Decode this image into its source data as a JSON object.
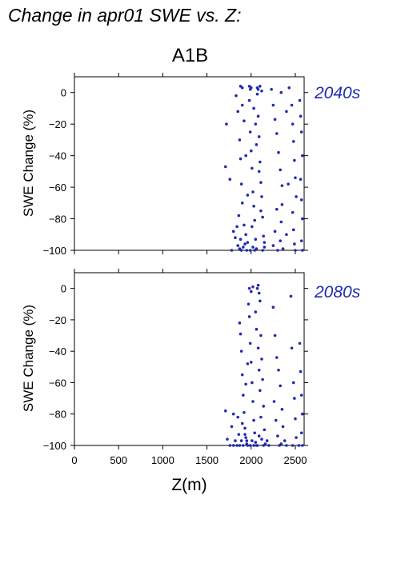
{
  "page": {
    "title": "Change in apr01 SWE vs. Z:",
    "scenario": "A1B",
    "xlabel": "Z(m)",
    "ylabel": "SWE Change (%)"
  },
  "colors": {
    "points": "#1f2bb0",
    "period_label": "#1f2bb0"
  },
  "chart_data": [
    {
      "type": "scatter",
      "label": "2040s",
      "xlabel": "Z(m)",
      "ylabel": "SWE Change (%)",
      "xlim": [
        0,
        2600
      ],
      "ylim": [
        -100,
        10
      ],
      "xticks": [
        0,
        500,
        1000,
        1500,
        2000,
        2500
      ],
      "yticks": [
        0,
        -20,
        -40,
        -60,
        -80,
        -100
      ],
      "points": [
        [
          1720,
          -20
        ],
        [
          1710,
          -47
        ],
        [
          1760,
          -55
        ],
        [
          1830,
          -2
        ],
        [
          1850,
          -12
        ],
        [
          1870,
          -30
        ],
        [
          1880,
          -42
        ],
        [
          1890,
          -58
        ],
        [
          1900,
          -70
        ],
        [
          1920,
          -84
        ],
        [
          1940,
          -90
        ],
        [
          1960,
          -95
        ],
        [
          1800,
          -88
        ],
        [
          1820,
          -92
        ],
        [
          1850,
          -97
        ],
        [
          1870,
          -99
        ],
        [
          1890,
          -100
        ],
        [
          1910,
          -98
        ],
        [
          1930,
          -96
        ],
        [
          1950,
          -100
        ],
        [
          1980,
          -5
        ],
        [
          1990,
          -25
        ],
        [
          2000,
          -37
        ],
        [
          2010,
          -48
        ],
        [
          2020,
          -63
        ],
        [
          2030,
          -72
        ],
        [
          2040,
          -81
        ],
        [
          2050,
          -93
        ],
        [
          2060,
          -99
        ],
        [
          2070,
          -1
        ],
        [
          2080,
          -15
        ],
        [
          2090,
          -28
        ],
        [
          2100,
          -44
        ],
        [
          2110,
          -57
        ],
        [
          2120,
          -66
        ],
        [
          2130,
          -79
        ],
        [
          2140,
          -91
        ],
        [
          2150,
          -98
        ],
        [
          2070,
          3
        ],
        [
          2080,
          2
        ],
        [
          2100,
          4
        ],
        [
          2000,
          3
        ],
        [
          1980,
          4
        ],
        [
          2120,
          1
        ],
        [
          1880,
          4
        ],
        [
          1900,
          3
        ],
        [
          1990,
          2
        ],
        [
          2030,
          -10
        ],
        [
          2050,
          -20
        ],
        [
          2060,
          -33
        ],
        [
          2090,
          -50
        ],
        [
          2110,
          -75
        ],
        [
          2010,
          -85
        ],
        [
          1960,
          -65
        ],
        [
          1940,
          -40
        ],
        [
          1920,
          -18
        ],
        [
          1900,
          -8
        ],
        [
          2250,
          -8
        ],
        [
          2270,
          -17
        ],
        [
          2290,
          -26
        ],
        [
          2310,
          -38
        ],
        [
          2330,
          -49
        ],
        [
          2350,
          -59
        ],
        [
          2350,
          -71
        ],
        [
          2340,
          -82
        ],
        [
          2330,
          -94
        ],
        [
          2360,
          -99
        ],
        [
          2300,
          -100
        ],
        [
          2250,
          -97
        ],
        [
          2270,
          -88
        ],
        [
          2290,
          -74
        ],
        [
          2230,
          2
        ],
        [
          2340,
          0
        ],
        [
          2460,
          -8
        ],
        [
          2470,
          -20
        ],
        [
          2480,
          -31
        ],
        [
          2490,
          -43
        ],
        [
          2500,
          -54
        ],
        [
          2510,
          -66
        ],
        [
          2470,
          -76
        ],
        [
          2480,
          -87
        ],
        [
          2490,
          -96
        ],
        [
          2500,
          -100
        ],
        [
          2550,
          -5
        ],
        [
          2560,
          -15
        ],
        [
          2570,
          -25
        ],
        [
          2580,
          -40
        ],
        [
          2560,
          -55
        ],
        [
          2570,
          -68
        ],
        [
          2580,
          -80
        ],
        [
          2570,
          -94
        ],
        [
          2580,
          -100
        ],
        [
          2430,
          3
        ],
        [
          2400,
          -12
        ],
        [
          2420,
          -58
        ],
        [
          2400,
          -90
        ],
        [
          1780,
          -100
        ],
        [
          1840,
          -85
        ],
        [
          1860,
          -78
        ],
        [
          1880,
          -93
        ],
        [
          1990,
          -100
        ],
        [
          2020,
          -98
        ],
        [
          2040,
          -100
        ],
        [
          2130,
          -100
        ],
        [
          2150,
          -95
        ]
      ]
    },
    {
      "type": "scatter",
      "label": "2080s",
      "xlabel": "Z(m)",
      "ylabel": "SWE Change (%)",
      "xlim": [
        0,
        2600
      ],
      "ylim": [
        -100,
        10
      ],
      "xticks": [
        0,
        500,
        1000,
        1500,
        2000,
        2500
      ],
      "yticks": [
        0,
        -20,
        -40,
        -60,
        -80,
        -100
      ],
      "points": [
        [
          1710,
          -78
        ],
        [
          1730,
          -96
        ],
        [
          1760,
          -100
        ],
        [
          1780,
          -88
        ],
        [
          1800,
          -80
        ],
        [
          1820,
          -97
        ],
        [
          1840,
          -100
        ],
        [
          1860,
          -93
        ],
        [
          1870,
          -22
        ],
        [
          1880,
          -29
        ],
        [
          1890,
          -40
        ],
        [
          1900,
          -55
        ],
        [
          1910,
          -68
        ],
        [
          1920,
          -79
        ],
        [
          1930,
          -89
        ],
        [
          1940,
          -95
        ],
        [
          1950,
          -99
        ],
        [
          1960,
          -100
        ],
        [
          1970,
          -10
        ],
        [
          1980,
          -18
        ],
        [
          1990,
          -35
        ],
        [
          2000,
          -47
        ],
        [
          2010,
          -60
        ],
        [
          2020,
          -72
        ],
        [
          2030,
          -84
        ],
        [
          2040,
          -92
        ],
        [
          2050,
          -98
        ],
        [
          2060,
          -100
        ],
        [
          2070,
          0
        ],
        [
          2080,
          2
        ],
        [
          2090,
          -3
        ],
        [
          2100,
          -8
        ],
        [
          2110,
          -30
        ],
        [
          2120,
          -45
        ],
        [
          2130,
          -58
        ],
        [
          2140,
          -75
        ],
        [
          2150,
          -90
        ],
        [
          2160,
          -99
        ],
        [
          1980,
          0
        ],
        [
          2000,
          -2
        ],
        [
          2020,
          1
        ],
        [
          2050,
          -15
        ],
        [
          2060,
          -26
        ],
        [
          2080,
          -38
        ],
        [
          2090,
          -52
        ],
        [
          2100,
          -65
        ],
        [
          2110,
          -82
        ],
        [
          2120,
          -96
        ],
        [
          2250,
          -12
        ],
        [
          2270,
          -30
        ],
        [
          2290,
          -44
        ],
        [
          2310,
          -52
        ],
        [
          2330,
          -62
        ],
        [
          2350,
          -77
        ],
        [
          2360,
          -88
        ],
        [
          2340,
          -99
        ],
        [
          2320,
          -100
        ],
        [
          2300,
          -94
        ],
        [
          2280,
          -84
        ],
        [
          2260,
          -72
        ],
        [
          2450,
          -5
        ],
        [
          2460,
          -38
        ],
        [
          2480,
          -60
        ],
        [
          2490,
          -70
        ],
        [
          2500,
          -83
        ],
        [
          2510,
          -95
        ],
        [
          2470,
          -100
        ],
        [
          2550,
          -35
        ],
        [
          2560,
          -53
        ],
        [
          2570,
          -68
        ],
        [
          2580,
          -80
        ],
        [
          2570,
          -92
        ],
        [
          2580,
          -100
        ],
        [
          2540,
          -100
        ],
        [
          2400,
          -100
        ],
        [
          2380,
          -97
        ],
        [
          1870,
          -100
        ],
        [
          1890,
          -97
        ],
        [
          1910,
          -100
        ],
        [
          1930,
          -93
        ],
        [
          1950,
          -97
        ],
        [
          1990,
          -100
        ],
        [
          2010,
          -97
        ],
        [
          2030,
          -100
        ],
        [
          2070,
          -100
        ],
        [
          2090,
          -94
        ],
        [
          2140,
          -100
        ],
        [
          2180,
          -97
        ],
        [
          2200,
          -100
        ],
        [
          1800,
          -100
        ],
        [
          1850,
          -82
        ],
        [
          1900,
          -86
        ],
        [
          1940,
          -61
        ],
        [
          1960,
          -48
        ]
      ]
    }
  ]
}
